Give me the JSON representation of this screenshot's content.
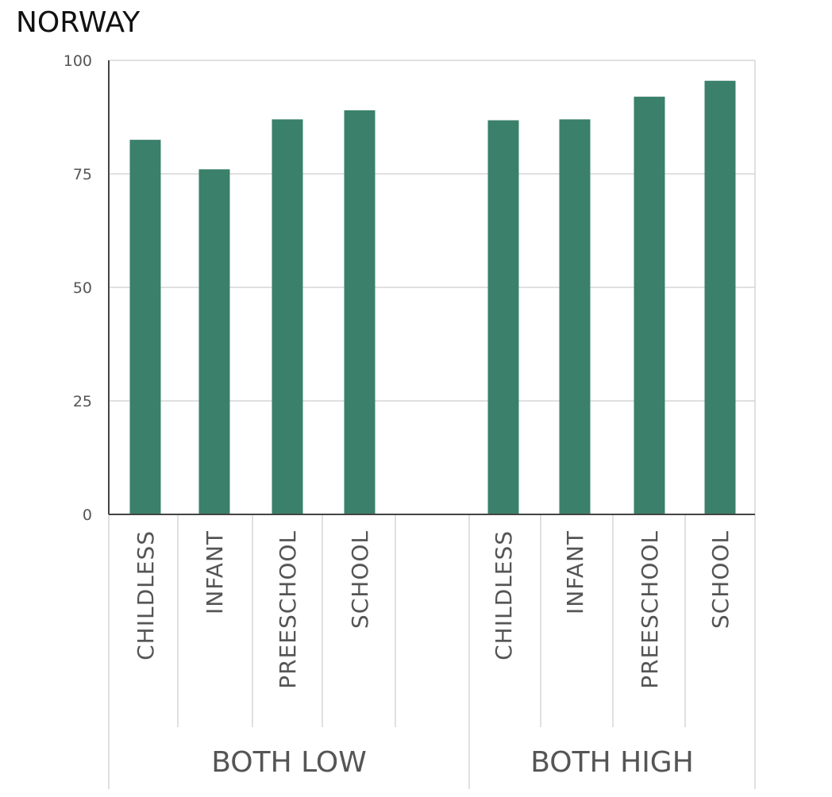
{
  "chart_data": {
    "type": "bar",
    "title": "NORWAY",
    "ylim": [
      0,
      100
    ],
    "yticks": [
      "0",
      "25",
      "50",
      "75",
      "100"
    ],
    "grid": true,
    "bar_color": "#3a806a",
    "groups": [
      {
        "name": "BOTH LOW",
        "categories": [
          "CHILDLESS",
          "INFANT",
          "PREESCHOOL",
          "SCHOOL"
        ],
        "values": [
          82.5,
          76,
          87,
          89
        ]
      },
      {
        "name": "BOTH HIGH",
        "categories": [
          "CHILDLESS",
          "INFANT",
          "PREESCHOOL",
          "SCHOOL"
        ],
        "values": [
          86.8,
          87,
          92,
          95.5
        ]
      }
    ]
  }
}
